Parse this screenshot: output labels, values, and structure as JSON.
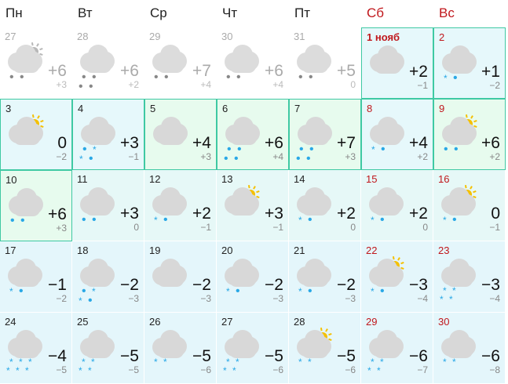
{
  "weekdays": [
    {
      "label": "Пн",
      "weekend": false
    },
    {
      "label": "Вт",
      "weekend": false
    },
    {
      "label": "Ср",
      "weekend": false
    },
    {
      "label": "Чт",
      "weekend": false
    },
    {
      "label": "Пт",
      "weekend": false
    },
    {
      "label": "Сб",
      "weekend": true
    },
    {
      "label": "Вс",
      "weekend": true
    }
  ],
  "colors": {
    "weekend": "#c0171c",
    "highlight_border": "#3fc9a3",
    "rain": "#29a8e6",
    "sun": "#f5c000"
  },
  "days": [
    {
      "day": "27",
      "hi": "+6",
      "lo": "+3",
      "style": "past",
      "sun": "grey",
      "precip": [
        [
          "drop",
          "drop"
        ]
      ]
    },
    {
      "day": "28",
      "hi": "+6",
      "lo": "+2",
      "style": "past",
      "precip": [
        [
          "drop",
          "drop"
        ],
        [
          "drop",
          "drop"
        ]
      ]
    },
    {
      "day": "29",
      "hi": "+7",
      "lo": "+4",
      "style": "past",
      "precip": [
        [
          "drop",
          "drop"
        ]
      ]
    },
    {
      "day": "30",
      "hi": "+6",
      "lo": "+4",
      "style": "past",
      "precip": [
        [
          "drop",
          "drop"
        ]
      ]
    },
    {
      "day": "31",
      "hi": "+5",
      "lo": "0",
      "style": "past",
      "precip": [
        [
          "drop",
          "drop"
        ]
      ]
    },
    {
      "day": "1 нояб",
      "hi": "+2",
      "lo": "−1",
      "style": "blue",
      "weekend": true,
      "bold": true,
      "precip": []
    },
    {
      "day": "2",
      "hi": "+1",
      "lo": "−2",
      "style": "blue",
      "weekend": true,
      "precip": [
        [
          "snow",
          "drop"
        ]
      ]
    },
    {
      "day": "3",
      "hi": "0",
      "lo": "−2",
      "style": "blue",
      "sun": "yellow",
      "precip": []
    },
    {
      "day": "4",
      "hi": "+3",
      "lo": "−1",
      "style": "blue",
      "precip": [
        [
          "drop",
          "snow"
        ],
        [
          "snow",
          "drop"
        ]
      ]
    },
    {
      "day": "5",
      "hi": "+4",
      "lo": "+3",
      "style": "green",
      "precip": []
    },
    {
      "day": "6",
      "hi": "+6",
      "lo": "+4",
      "style": "green",
      "precip": [
        [
          "drop",
          "drop"
        ],
        [
          "drop",
          "drop"
        ]
      ]
    },
    {
      "day": "7",
      "hi": "+7",
      "lo": "+3",
      "style": "green",
      "precip": [
        [
          "drop",
          "drop"
        ],
        [
          "drop",
          "drop"
        ]
      ]
    },
    {
      "day": "8",
      "hi": "+4",
      "lo": "+2",
      "style": "blue",
      "weekend": true,
      "precip": [
        [
          "snow",
          "drop"
        ]
      ]
    },
    {
      "day": "9",
      "hi": "+6",
      "lo": "+2",
      "style": "green",
      "weekend": true,
      "sun": "yellow",
      "precip": [
        [
          "drop",
          "drop"
        ]
      ]
    },
    {
      "day": "10",
      "hi": "+6",
      "lo": "+3",
      "style": "green",
      "precip": [
        [
          "drop",
          "drop"
        ]
      ]
    },
    {
      "day": "11",
      "hi": "+3",
      "lo": "0",
      "style": "cyan",
      "precip": [
        [
          "drop",
          "drop"
        ]
      ]
    },
    {
      "day": "12",
      "hi": "+2",
      "lo": "−1",
      "style": "cyan",
      "precip": [
        [
          "snow",
          "drop"
        ]
      ]
    },
    {
      "day": "13",
      "hi": "+3",
      "lo": "−1",
      "style": "cyan",
      "sun": "yellow",
      "precip": []
    },
    {
      "day": "14",
      "hi": "+2",
      "lo": "0",
      "style": "cyan",
      "precip": [
        [
          "snow",
          "drop"
        ]
      ]
    },
    {
      "day": "15",
      "hi": "+2",
      "lo": "0",
      "style": "cyan",
      "weekend": true,
      "precip": [
        [
          "snow",
          "drop"
        ]
      ]
    },
    {
      "day": "16",
      "hi": "0",
      "lo": "−1",
      "style": "cyan",
      "weekend": true,
      "sun": "yellow",
      "precip": [
        [
          "snow",
          "drop"
        ]
      ]
    },
    {
      "day": "17",
      "hi": "−1",
      "lo": "−2",
      "style": "",
      "precip": [
        [
          "snow",
          "drop"
        ]
      ]
    },
    {
      "day": "18",
      "hi": "−2",
      "lo": "−3",
      "style": "",
      "precip": [
        [
          "drop",
          "snow"
        ],
        [
          "snow",
          "drop"
        ]
      ]
    },
    {
      "day": "19",
      "hi": "−2",
      "lo": "−3",
      "style": "",
      "precip": []
    },
    {
      "day": "20",
      "hi": "−2",
      "lo": "−3",
      "style": "",
      "precip": [
        [
          "snow",
          "drop"
        ]
      ]
    },
    {
      "day": "21",
      "hi": "−2",
      "lo": "−3",
      "style": "",
      "precip": [
        [
          "snow",
          "drop"
        ]
      ]
    },
    {
      "day": "22",
      "hi": "−3",
      "lo": "−4",
      "style": "",
      "weekend": true,
      "sun": "yellow",
      "precip": [
        [
          "snow",
          "drop"
        ]
      ]
    },
    {
      "day": "23",
      "hi": "−3",
      "lo": "−4",
      "style": "",
      "weekend": true,
      "precip": [
        [
          "snow",
          "snow"
        ],
        [
          "snow",
          "snow"
        ]
      ]
    },
    {
      "day": "24",
      "hi": "−4",
      "lo": "−5",
      "style": "",
      "precip": [
        [
          "snow",
          "snow",
          "snow"
        ],
        [
          "snow",
          "snow",
          "snow"
        ]
      ]
    },
    {
      "day": "25",
      "hi": "−5",
      "lo": "−5",
      "style": "",
      "precip": [
        [
          "snow",
          "snow"
        ],
        [
          "snow",
          "snow"
        ]
      ]
    },
    {
      "day": "26",
      "hi": "−5",
      "lo": "−6",
      "style": "",
      "precip": [
        [
          "snow",
          "snow"
        ]
      ]
    },
    {
      "day": "27",
      "hi": "−5",
      "lo": "−6",
      "style": "",
      "precip": [
        [
          "snow",
          "snow"
        ],
        [
          "snow",
          "snow"
        ]
      ]
    },
    {
      "day": "28",
      "hi": "−5",
      "lo": "−6",
      "style": "",
      "sun": "yellow",
      "precip": [
        [
          "snow",
          "snow"
        ]
      ]
    },
    {
      "day": "29",
      "hi": "−6",
      "lo": "−7",
      "style": "",
      "weekend": true,
      "precip": [
        [
          "snow",
          "snow"
        ],
        [
          "snow",
          "snow"
        ]
      ]
    },
    {
      "day": "30",
      "hi": "−6",
      "lo": "−8",
      "style": "",
      "weekend": true,
      "precip": [
        [
          "snow",
          "snow"
        ]
      ]
    }
  ]
}
